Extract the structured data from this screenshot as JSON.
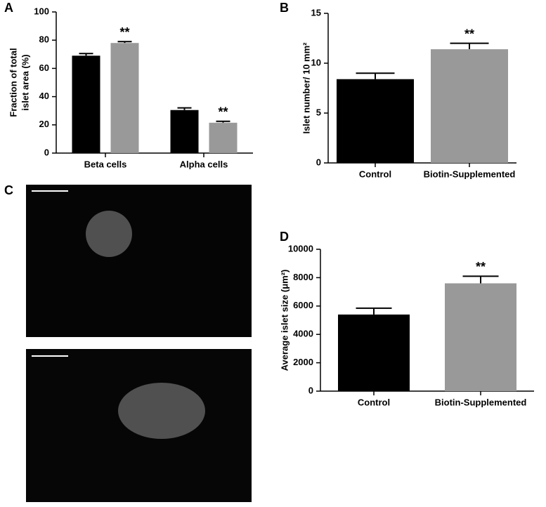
{
  "chart_data": [
    {
      "type": "bar",
      "label": "A",
      "y_label": [
        "Fraction of total",
        "islet area (%)"
      ],
      "categories": [
        "Beta cells",
        "Alpha cells"
      ],
      "series": [
        {
          "color": "#000000",
          "values": [
            69,
            30.5
          ],
          "errors": [
            1.5,
            1.5
          ],
          "annotations": [
            null,
            null
          ]
        },
        {
          "color": "#999999",
          "values": [
            78,
            21.5
          ],
          "errors": [
            1,
            1
          ],
          "annotations": [
            "**",
            "**"
          ]
        }
      ],
      "ylim": [
        0,
        100
      ],
      "yticks": [
        0,
        20,
        40,
        60,
        80,
        100
      ]
    },
    {
      "type": "bar",
      "label": "B",
      "y_label": [
        "Islet number/ 10 mm²"
      ],
      "categories": [
        "Control",
        "Biotin-Supplemented"
      ],
      "series": [
        {
          "colors": [
            "#000000",
            "#999999"
          ],
          "values": [
            8.4,
            11.4
          ],
          "errors": [
            0.6,
            0.6
          ],
          "annotations": [
            null,
            "**"
          ]
        }
      ],
      "ylim": [
        0,
        15
      ],
      "yticks": [
        0,
        5,
        10,
        15
      ]
    },
    {
      "type": "bar",
      "label": "D",
      "y_label": [
        "Average islet size (μm²)"
      ],
      "categories": [
        "Control",
        "Biotin-Supplemented"
      ],
      "series": [
        {
          "colors": [
            "#000000",
            "#999999"
          ],
          "values": [
            5400,
            7600
          ],
          "errors": [
            450,
            500
          ],
          "annotations": [
            null,
            "**"
          ]
        }
      ],
      "ylim": [
        0,
        10000
      ],
      "yticks": [
        0,
        2000,
        4000,
        6000,
        8000,
        10000
      ]
    }
  ],
  "images": {
    "label": "C"
  }
}
